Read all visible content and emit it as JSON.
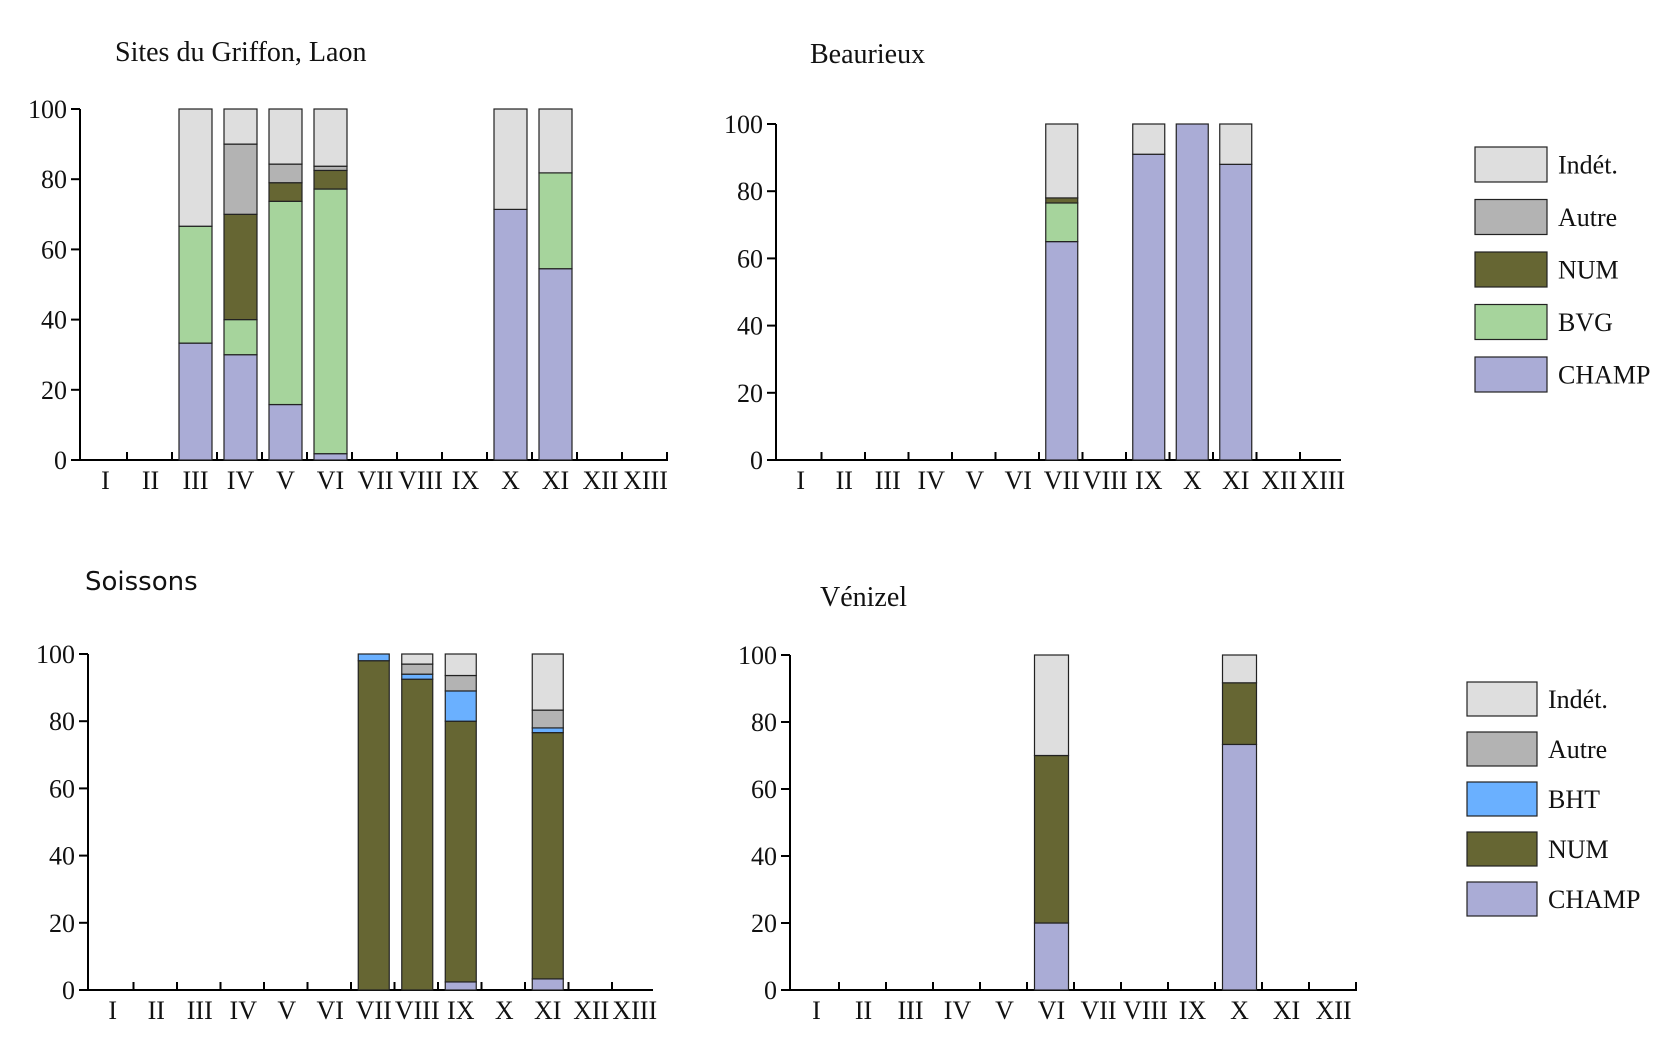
{
  "chart_data": [
    {
      "type": "bar",
      "stacked": true,
      "title": "Sites du Griffon, Laon",
      "categories": [
        "I",
        "II",
        "III",
        "IV",
        "V",
        "VI",
        "VII",
        "VIII",
        "IX",
        "X",
        "XI",
        "XII",
        "XIII"
      ],
      "ylim": [
        0,
        100
      ],
      "yticks": [
        0,
        20,
        40,
        60,
        80,
        100
      ],
      "legend": "right",
      "series": [
        {
          "name": "CHAMP",
          "color": "#aaacd6",
          "values": [
            0,
            0,
            33.3,
            30,
            15.8,
            1.8,
            0,
            0,
            0,
            71.4,
            54.5,
            0,
            0
          ]
        },
        {
          "name": "BVG",
          "color": "#a6d49c",
          "values": [
            0,
            0,
            33.3,
            10,
            57.9,
            75.4,
            0,
            0,
            0,
            0,
            27.3,
            0,
            0
          ]
        },
        {
          "name": "NUM",
          "color": "#666633",
          "values": [
            0,
            0,
            0,
            30,
            5.3,
            5.3,
            0,
            0,
            0,
            0,
            0,
            0,
            0
          ]
        },
        {
          "name": "Autre",
          "color": "#b3b3b3",
          "values": [
            0,
            0,
            0,
            20,
            5.3,
            1.2,
            0,
            0,
            0,
            0,
            0,
            0,
            0
          ]
        },
        {
          "name": "Indét.",
          "color": "#dedede",
          "values": [
            0,
            0,
            33.4,
            10,
            15.7,
            16.3,
            0,
            0,
            0,
            28.6,
            18.2,
            0,
            0
          ]
        }
      ]
    },
    {
      "type": "bar",
      "stacked": true,
      "title": "Beaurieux",
      "categories": [
        "I",
        "II",
        "III",
        "IV",
        "V",
        "VI",
        "VII",
        "VIII",
        "IX",
        "X",
        "XI",
        "XII",
        "XIII"
      ],
      "ylim": [
        0,
        100
      ],
      "yticks": [
        0,
        20,
        40,
        60,
        80,
        100
      ],
      "legend": "right",
      "series": [
        {
          "name": "CHAMP",
          "color": "#aaacd6",
          "values": [
            0,
            0,
            0,
            0,
            0,
            0,
            65,
            0,
            91,
            100,
            88,
            0,
            0
          ]
        },
        {
          "name": "BVG",
          "color": "#a6d49c",
          "values": [
            0,
            0,
            0,
            0,
            0,
            0,
            11.5,
            0,
            0,
            0,
            0,
            0,
            0
          ]
        },
        {
          "name": "NUM",
          "color": "#666633",
          "values": [
            0,
            0,
            0,
            0,
            0,
            0,
            1.5,
            0,
            0,
            0,
            0,
            0,
            0
          ]
        },
        {
          "name": "Autre",
          "color": "#b3b3b3",
          "values": [
            0,
            0,
            0,
            0,
            0,
            0,
            0,
            0,
            0,
            0,
            0,
            0,
            0
          ]
        },
        {
          "name": "Indét.",
          "color": "#dedede",
          "values": [
            0,
            0,
            0,
            0,
            0,
            0,
            22,
            0,
            9,
            0,
            12,
            0,
            0
          ]
        }
      ]
    },
    {
      "type": "bar",
      "stacked": true,
      "title": "Soissons",
      "categories": [
        "I",
        "II",
        "III",
        "IV",
        "V",
        "VI",
        "VII",
        "VIII",
        "IX",
        "X",
        "XI",
        "XII",
        "XIII"
      ],
      "ylim": [
        0,
        100
      ],
      "yticks": [
        0,
        20,
        40,
        60,
        80,
        100
      ],
      "legend": "right",
      "series": [
        {
          "name": "CHAMP",
          "color": "#aaacd6",
          "values": [
            0,
            0,
            0,
            0,
            0,
            0,
            0,
            0,
            2.4,
            0,
            3.3,
            0,
            0
          ]
        },
        {
          "name": "NUM",
          "color": "#666633",
          "values": [
            0,
            0,
            0,
            0,
            0,
            0,
            98,
            92.5,
            77.6,
            0,
            73.3,
            0,
            0
          ]
        },
        {
          "name": "BHT",
          "color": "#6ab0ff",
          "values": [
            0,
            0,
            0,
            0,
            0,
            0,
            2,
            1.5,
            9,
            0,
            1.4,
            0,
            0
          ]
        },
        {
          "name": "Autre",
          "color": "#b3b3b3",
          "values": [
            0,
            0,
            0,
            0,
            0,
            0,
            0,
            3,
            4.6,
            0,
            5.3,
            0,
            0
          ]
        },
        {
          "name": "Indét.",
          "color": "#dedede",
          "values": [
            0,
            0,
            0,
            0,
            0,
            0,
            0,
            3,
            6.4,
            0,
            16.7,
            0,
            0
          ]
        }
      ]
    },
    {
      "type": "bar",
      "stacked": true,
      "title": "Vénizel",
      "categories": [
        "I",
        "II",
        "III",
        "IV",
        "V",
        "VI",
        "VII",
        "VIII",
        "IX",
        "X",
        "XI",
        "XII"
      ],
      "ylim": [
        0,
        100
      ],
      "yticks": [
        0,
        20,
        40,
        60,
        80,
        100
      ],
      "legend": "right",
      "series": [
        {
          "name": "CHAMP",
          "color": "#aaacd6",
          "values": [
            0,
            0,
            0,
            0,
            0,
            20,
            0,
            0,
            0,
            73.3,
            0,
            0
          ]
        },
        {
          "name": "NUM",
          "color": "#666633",
          "values": [
            0,
            0,
            0,
            0,
            0,
            50,
            0,
            0,
            0,
            18.4,
            0,
            0
          ]
        },
        {
          "name": "BHT",
          "color": "#6ab0ff",
          "values": [
            0,
            0,
            0,
            0,
            0,
            0,
            0,
            0,
            0,
            0,
            0,
            0
          ]
        },
        {
          "name": "Autre",
          "color": "#b3b3b3",
          "values": [
            0,
            0,
            0,
            0,
            0,
            0,
            0,
            0,
            0,
            0,
            0,
            0
          ]
        },
        {
          "name": "Indét.",
          "color": "#dedede",
          "values": [
            0,
            0,
            0,
            0,
            0,
            30,
            0,
            0,
            0,
            8.3,
            0,
            0
          ]
        }
      ]
    }
  ]
}
